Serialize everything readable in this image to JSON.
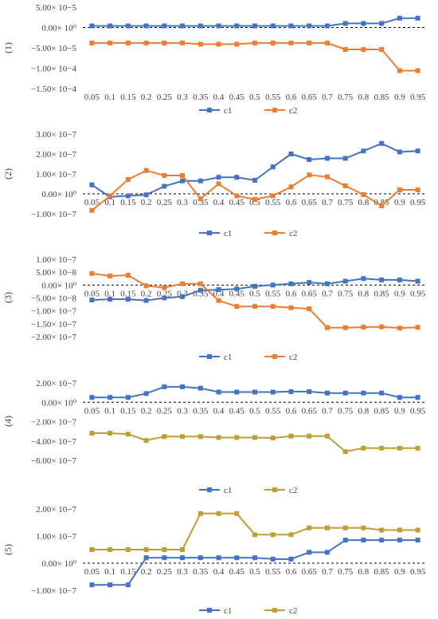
{
  "colors": {
    "c1": "#4472c4",
    "c2_orange": "#ed7d31",
    "c2_olive": "#bf9f33",
    "zero_line": "#000000"
  },
  "chart_data": [
    {
      "type": "line",
      "panel_label": "(1)",
      "categories": [
        "0.05",
        "0.1",
        "0.15",
        "0.2",
        "0.25",
        "0.3",
        "0.35",
        "0.4",
        "0.45",
        "0.5",
        "0.55",
        "0.6",
        "0.65",
        "0.7",
        "0.75",
        "0.8",
        "0.85",
        "0.9",
        "0.95"
      ],
      "ylim": [
        -0.00015,
        5e-05
      ],
      "yticks": [
        {
          "v": 5e-05,
          "label": "5.00× 10−5"
        },
        {
          "v": 0,
          "label": "0.00× 10⁰"
        },
        {
          "v": -5e-05,
          "label": "−5.00× 10−5"
        },
        {
          "v": -0.0001,
          "label": "−1.00× 10−4"
        },
        {
          "v": -0.00015,
          "label": "−1.50× 10−4"
        }
      ],
      "xlabels_at_zero": false,
      "series": [
        {
          "name": "c1",
          "color": "#4472c4",
          "values": [
            4e-06,
            4e-06,
            4e-06,
            4e-06,
            4e-06,
            4e-06,
            4e-06,
            4e-06,
            4e-06,
            4e-06,
            4e-06,
            4e-06,
            4e-06,
            4e-06,
            1e-05,
            1e-05,
            1e-05,
            2.3e-05,
            2.3e-05
          ]
        },
        {
          "name": "c2",
          "color": "#ed7d31",
          "values": [
            -3.8e-05,
            -3.8e-05,
            -3.8e-05,
            -3.8e-05,
            -3.8e-05,
            -3.8e-05,
            -4.1e-05,
            -4.1e-05,
            -4.1e-05,
            -3.8e-05,
            -3.8e-05,
            -3.8e-05,
            -3.8e-05,
            -3.8e-05,
            -5.4e-05,
            -5.4e-05,
            -5.4e-05,
            -0.000106,
            -0.000106
          ]
        }
      ]
    },
    {
      "type": "line",
      "panel_label": "(2)",
      "categories": [
        "0.05",
        "0.1",
        "0.15",
        "0.2",
        "0.25",
        "0.3",
        "0.35",
        "0.4",
        "0.45",
        "0.5",
        "0.55",
        "0.6",
        "0.65",
        "0.7",
        "0.75",
        "0.8",
        "0.85",
        "0.9",
        "0.95"
      ],
      "ylim": [
        -1e-07,
        3e-07
      ],
      "yticks": [
        {
          "v": 3e-07,
          "label": "3.00× 10−7"
        },
        {
          "v": 2e-07,
          "label": "2.00× 10−7"
        },
        {
          "v": 1e-07,
          "label": "1.00× 10−7"
        },
        {
          "v": 0,
          "label": "0.00× 10⁰"
        },
        {
          "v": -1e-07,
          "label": "−1.00× 10−7"
        }
      ],
      "xlabels_at_zero": true,
      "series": [
        {
          "name": "c1",
          "color": "#4472c4",
          "values": [
            4.5e-08,
            -1.5e-08,
            -1e-08,
            -5e-09,
            3.8e-08,
            6.5e-08,
            6.5e-08,
            8.3e-08,
            8.3e-08,
            6.8e-08,
            1.35e-07,
            2e-07,
            1.72e-07,
            1.78e-07,
            1.78e-07,
            2.15e-07,
            2.53e-07,
            2.1e-07,
            2.15e-07
          ]
        },
        {
          "name": "c2",
          "color": "#ed7d31",
          "values": [
            -8.3e-08,
            -1e-08,
            7.2e-08,
            1.17e-07,
            9.2e-08,
            9.2e-08,
            -2.5e-08,
            5e-08,
            -1e-08,
            -2.8e-08,
            -1e-08,
            3.5e-08,
            9.5e-08,
            8.5e-08,
            4e-08,
            -4e-09,
            -6e-08,
            2e-08,
            2e-08
          ]
        }
      ]
    },
    {
      "type": "line",
      "panel_label": "(3)",
      "categories": [
        "0.05",
        "0.1",
        "0.15",
        "0.2",
        "0.25",
        "0.3",
        "0.35",
        "0.4",
        "0.45",
        "0.5",
        "0.55",
        "0.6",
        "0.65",
        "0.7",
        "0.75",
        "0.8",
        "0.85",
        "0.9",
        "0.95"
      ],
      "ylim": [
        -2e-07,
        1e-07
      ],
      "yticks": [
        {
          "v": 1e-07,
          "label": "1.00× 10−7"
        },
        {
          "v": 5e-08,
          "label": "5.00× 10−8"
        },
        {
          "v": 0,
          "label": "0.00× 10⁰"
        },
        {
          "v": -5e-08,
          "label": "−5.00× 10−8"
        },
        {
          "v": -1e-07,
          "label": "−1.00× 10−7"
        },
        {
          "v": -1.5e-07,
          "label": "−1.50× 10−7"
        },
        {
          "v": -2e-07,
          "label": "−2.00× 10−7"
        }
      ],
      "xlabels_at_zero": true,
      "series": [
        {
          "name": "c1",
          "color": "#4472c4",
          "values": [
            -5.8e-08,
            -5.5e-08,
            -5.5e-08,
            -6e-08,
            -5e-08,
            -4.5e-08,
            -2e-08,
            -1.8e-08,
            -1.5e-08,
            -5e-09,
            0,
            5e-09,
            1e-08,
            5e-09,
            1.5e-08,
            2.5e-08,
            2e-08,
            2e-08,
            1.5e-08
          ]
        },
        {
          "name": "c2",
          "color": "#ed7d31",
          "values": [
            4.5e-08,
            3.5e-08,
            3.8e-08,
            -3e-09,
            -1e-08,
            5e-09,
            5e-09,
            -6e-08,
            -8.3e-08,
            -8.3e-08,
            -8.3e-08,
            -8.8e-08,
            -9.2e-08,
            -1.65e-07,
            -1.65e-07,
            -1.63e-07,
            -1.62e-07,
            -1.67e-07,
            -1.64e-07
          ]
        }
      ]
    },
    {
      "type": "line",
      "panel_label": "(4)",
      "categories": [
        "0.05",
        "0.1",
        "0.15",
        "0.2",
        "0.25",
        "0.3",
        "0.35",
        "0.4",
        "0.45",
        "0.5",
        "0.55",
        "0.6",
        "0.65",
        "0.7",
        "0.75",
        "0.8",
        "0.85",
        "0.9",
        "0.95"
      ],
      "ylim": [
        -6e-07,
        2e-07
      ],
      "yticks": [
        {
          "v": 2e-07,
          "label": "2.00× 10−7"
        },
        {
          "v": 0,
          "label": "0.00× 10⁰"
        },
        {
          "v": -2e-07,
          "label": "−2.00× 10−7"
        },
        {
          "v": -4e-07,
          "label": "−4.00× 10−7"
        },
        {
          "v": -6e-07,
          "label": "−6.00× 10−7"
        }
      ],
      "xlabels_at_zero": true,
      "series": [
        {
          "name": "c1",
          "color": "#4472c4",
          "values": [
            5e-08,
            5e-08,
            5e-08,
            9e-08,
            1.6e-07,
            1.6e-07,
            1.45e-07,
            1.05e-07,
            1.05e-07,
            1.05e-07,
            1.05e-07,
            1.1e-07,
            1.1e-07,
            9.5e-08,
            9.5e-08,
            9.5e-08,
            9.5e-08,
            5e-08,
            5e-08
          ]
        },
        {
          "name": "c2",
          "color": "#bf9f33",
          "values": [
            -3.2e-07,
            -3.2e-07,
            -3.3e-07,
            -3.95e-07,
            -3.55e-07,
            -3.55e-07,
            -3.55e-07,
            -3.65e-07,
            -3.65e-07,
            -3.65e-07,
            -3.7e-07,
            -3.5e-07,
            -3.5e-07,
            -3.5e-07,
            -5.1e-07,
            -4.75e-07,
            -4.75e-07,
            -4.75e-07,
            -4.75e-07
          ]
        }
      ]
    },
    {
      "type": "line",
      "panel_label": "(5)",
      "categories": [
        "0.05",
        "0.1",
        "0.15",
        "0.2",
        "0.25",
        "0.3",
        "0.35",
        "0.4",
        "0.45",
        "0.5",
        "0.55",
        "0.6",
        "0.65",
        "0.7",
        "0.75",
        "0.8",
        "0.85",
        "0.9",
        "0.95"
      ],
      "ylim": [
        -1e-07,
        2e-07
      ],
      "yticks": [
        {
          "v": 2e-07,
          "label": "2.00× 10−7"
        },
        {
          "v": 1e-07,
          "label": "1.00× 10−7"
        },
        {
          "v": 0,
          "label": "0.00× 10⁰"
        },
        {
          "v": -1e-07,
          "label": "−1.00× 10−7"
        }
      ],
      "xlabels_at_zero": true,
      "series": [
        {
          "name": "c1",
          "color": "#4472c4",
          "values": [
            -8e-08,
            -8e-08,
            -8e-08,
            2e-08,
            2e-08,
            2e-08,
            2e-08,
            2e-08,
            2e-08,
            2e-08,
            1.5e-08,
            1.5e-08,
            4e-08,
            4e-08,
            8.5e-08,
            8.5e-08,
            8.5e-08,
            8.5e-08,
            8.5e-08
          ]
        },
        {
          "name": "c2",
          "color": "#bf9f33",
          "values": [
            5e-08,
            5e-08,
            5e-08,
            5e-08,
            5e-08,
            5e-08,
            1.83e-07,
            1.83e-07,
            1.83e-07,
            1.05e-07,
            1.05e-07,
            1.05e-07,
            1.3e-07,
            1.3e-07,
            1.3e-07,
            1.3e-07,
            1.22e-07,
            1.22e-07,
            1.22e-07
          ]
        }
      ]
    }
  ]
}
